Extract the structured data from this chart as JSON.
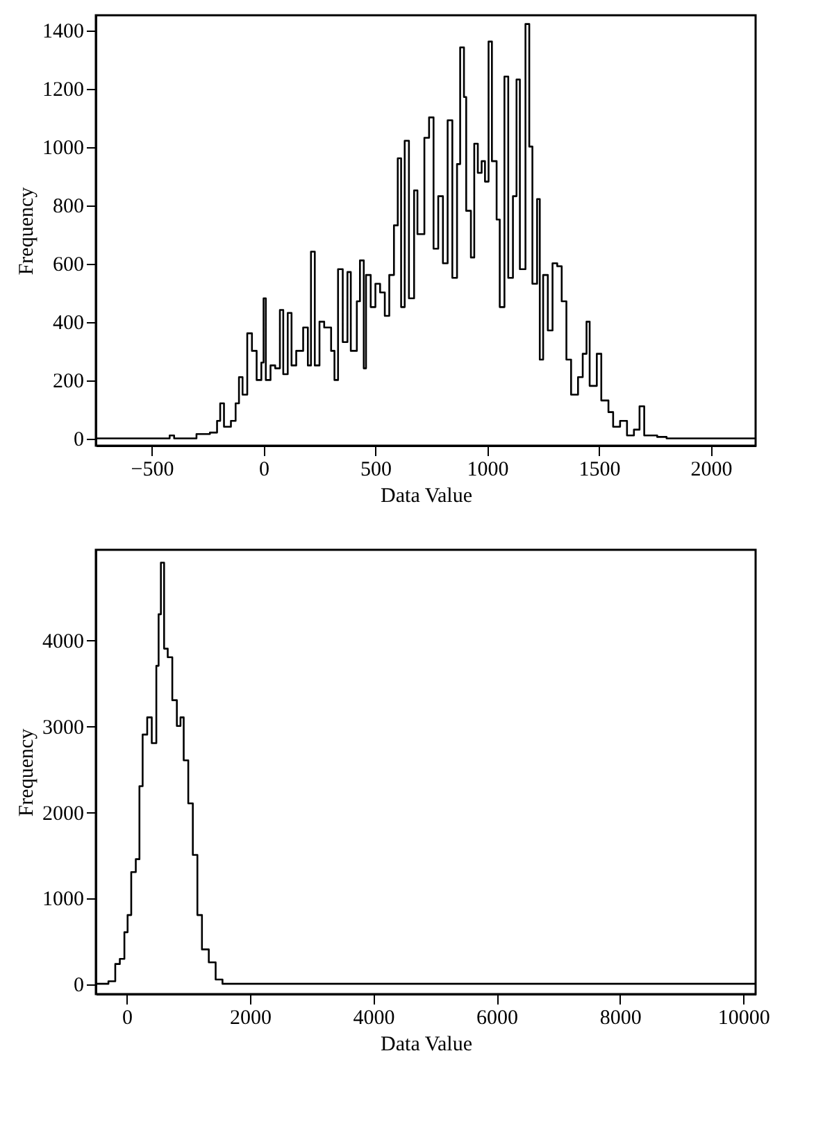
{
  "chart_data": [
    {
      "type": "step",
      "xlabel": "Data Value",
      "ylabel": "Frequency",
      "xlim": [
        -750,
        2200
      ],
      "ylim": [
        -25,
        1450
      ],
      "xticks": [
        -500,
        0,
        500,
        1000,
        1500,
        2000
      ],
      "yticks": [
        0,
        200,
        400,
        600,
        800,
        1000,
        1200,
        1400
      ],
      "grid": false,
      "x": [
        -750,
        -450,
        -420,
        -400,
        -300,
        -240,
        -208,
        -194,
        -177,
        -146,
        -125,
        -110,
        -94,
        -73,
        -52,
        -31,
        -10,
        0,
        10,
        31,
        52,
        73,
        88,
        108,
        125,
        146,
        177,
        198,
        212,
        229,
        250,
        271,
        302,
        317,
        333,
        354,
        375,
        390,
        417,
        431,
        448,
        458,
        479,
        500,
        521,
        542,
        562,
        583,
        600,
        615,
        631,
        650,
        673,
        688,
        719,
        740,
        760,
        781,
        802,
        823,
        844,
        865,
        879,
        896,
        906,
        927,
        942,
        958,
        975,
        990,
        1006,
        1021,
        1042,
        1056,
        1077,
        1094,
        1115,
        1131,
        1146,
        1171,
        1188,
        1202,
        1223,
        1235,
        1250,
        1271,
        1292,
        1313,
        1333,
        1354,
        1375,
        1406,
        1427,
        1444,
        1458,
        1490,
        1510,
        1542,
        1563,
        1594,
        1625,
        1656,
        1681,
        1702,
        1760,
        1802,
        2200
      ],
      "series": [
        {
          "color": "#000000",
          "values": [
            0,
            0,
            10,
            0,
            15,
            20,
            60,
            120,
            40,
            60,
            120,
            210,
            150,
            360,
            300,
            200,
            260,
            480,
            200,
            250,
            240,
            440,
            220,
            430,
            250,
            300,
            380,
            250,
            640,
            250,
            400,
            380,
            300,
            200,
            580,
            330,
            570,
            300,
            470,
            610,
            240,
            560,
            450,
            530,
            500,
            420,
            560,
            730,
            960,
            450,
            1020,
            480,
            850,
            700,
            1030,
            1100,
            650,
            830,
            600,
            1090,
            550,
            940,
            1340,
            1170,
            780,
            620,
            1010,
            910,
            950,
            880,
            1360,
            950,
            750,
            450,
            1240,
            550,
            830,
            1230,
            580,
            1420,
            1000,
            530,
            820,
            270,
            560,
            370,
            600,
            590,
            470,
            270,
            150,
            210,
            290,
            400,
            180,
            290,
            130,
            90,
            40,
            60,
            10,
            30,
            110,
            10,
            5,
            0,
            0
          ]
        }
      ]
    },
    {
      "type": "step",
      "xlabel": "Data Value",
      "ylabel": "Frequency",
      "xlim": [
        -500,
        10200
      ],
      "ylim": [
        -120,
        5050
      ],
      "xticks": [
        0,
        2000,
        4000,
        6000,
        8000,
        10000
      ],
      "yticks": [
        0,
        1000,
        2000,
        3000,
        4000
      ],
      "grid": false,
      "x": [
        -480,
        -296,
        -185,
        -111,
        -37,
        15,
        74,
        148,
        207,
        259,
        333,
        407,
        481,
        518,
        555,
        607,
        666,
        740,
        814,
        873,
        925,
        999,
        1073,
        1147,
        1221,
        1332,
        1443,
        1554,
        10200
      ],
      "series": [
        {
          "color": "#000000",
          "values": [
            0,
            30,
            230,
            290,
            600,
            800,
            1300,
            1450,
            2300,
            2900,
            3100,
            2800,
            3700,
            4300,
            4900,
            3900,
            3800,
            3300,
            3000,
            3100,
            2600,
            2100,
            1500,
            800,
            400,
            250,
            50,
            0,
            0
          ]
        }
      ]
    }
  ]
}
